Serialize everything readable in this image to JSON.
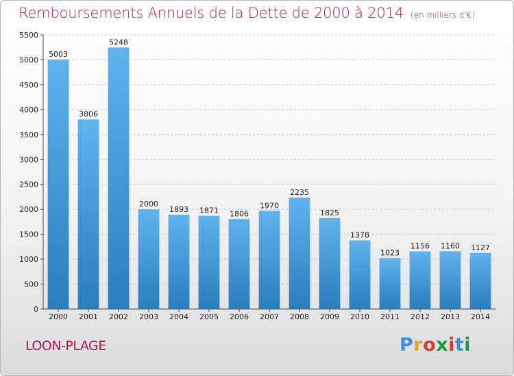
{
  "title": "Remboursements Annuels de la Dette de 2000 à 2014",
  "unit_note": "(en milliers d'€)",
  "town": "LOON-PLAGE",
  "logo_text": "Proxiti",
  "colors": {
    "title": "#b5185f",
    "bar_top": "#5fb3ee",
    "bar_bottom": "#2a7dbb",
    "grid": "#c9c9c9",
    "logo": [
      "#3a8fd6",
      "#e8a21a",
      "#e23a2a",
      "#1a9a3a",
      "#e23a2a",
      "#3a8fd6",
      "#1a9a3a"
    ]
  },
  "chart_data": {
    "type": "bar",
    "title": "Remboursements Annuels de la Dette de 2000 à 2014",
    "subtitle": "(en milliers d'€)",
    "xlabel": "",
    "ylabel": "",
    "categories": [
      "2000",
      "2001",
      "2002",
      "2003",
      "2004",
      "2005",
      "2006",
      "2007",
      "2008",
      "2009",
      "2010",
      "2011",
      "2012",
      "2013",
      "2014"
    ],
    "values": [
      5003,
      3806,
      5248,
      2000,
      1893,
      1871,
      1806,
      1970,
      2235,
      1825,
      1378,
      1023,
      1156,
      1160,
      1127
    ],
    "ylim": [
      0,
      5500
    ],
    "yticks": [
      0,
      500,
      1000,
      1500,
      2000,
      2500,
      3000,
      3500,
      4000,
      4500,
      5000,
      5500
    ],
    "grid": true,
    "data_labels": true
  }
}
